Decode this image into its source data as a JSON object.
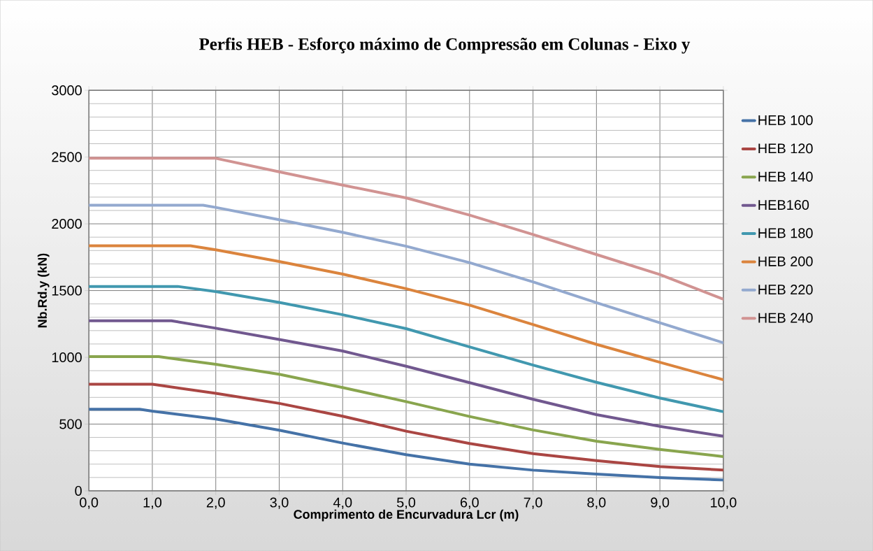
{
  "chart_data": {
    "type": "line",
    "title": "Perfis HEB - Esforço máximo de Compressão em Colunas - Eixo y",
    "xlabel": "Comprimento de Encurvadura Lcr (m)",
    "ylabel": "Nb.Rd.y (kN)",
    "xlim": [
      0,
      10
    ],
    "ylim": [
      0,
      3000
    ],
    "xticks": [
      {
        "value": 0,
        "label": "0,0"
      },
      {
        "value": 1,
        "label": "1,0"
      },
      {
        "value": 2,
        "label": "2,0"
      },
      {
        "value": 3,
        "label": "3,0"
      },
      {
        "value": 4,
        "label": "4,0"
      },
      {
        "value": 5,
        "label": "5,0"
      },
      {
        "value": 6,
        "label": "6,0"
      },
      {
        "value": 7,
        "label": "7,0"
      },
      {
        "value": 8,
        "label": "8,0"
      },
      {
        "value": 9,
        "label": "9,0"
      },
      {
        "value": 10,
        "label": "10,0"
      }
    ],
    "yticks": [
      0,
      500,
      1000,
      1500,
      2000,
      2500,
      3000
    ],
    "grid": true,
    "legend": "right",
    "series": [
      {
        "name": "HEB 100",
        "color": "#4572a7",
        "x": [
          0,
          0.8,
          1,
          2,
          3,
          4,
          5,
          6,
          7,
          8,
          9,
          10
        ],
        "values": [
          611,
          611,
          597,
          538,
          454,
          358,
          271,
          200,
          155,
          125,
          99,
          81
        ]
      },
      {
        "name": "HEB 120",
        "color": "#aa4643",
        "x": [
          0,
          1,
          2,
          3,
          4,
          5,
          6,
          7,
          8,
          9,
          10
        ],
        "values": [
          798,
          798,
          730,
          655,
          559,
          447,
          355,
          279,
          226,
          182,
          156
        ]
      },
      {
        "name": "HEB 140",
        "color": "#89a54e",
        "x": [
          0,
          1.1,
          2,
          3,
          4,
          5,
          6,
          7,
          8,
          9,
          10
        ],
        "values": [
          1005,
          1005,
          948,
          873,
          774,
          668,
          557,
          456,
          372,
          310,
          257
        ]
      },
      {
        "name": "HEB160",
        "color": "#71588f",
        "x": [
          0,
          1,
          1.3,
          2,
          3,
          4,
          5,
          6,
          7,
          8,
          9,
          10
        ],
        "values": [
          1274,
          1274,
          1274,
          1218,
          1134,
          1047,
          933,
          810,
          686,
          571,
          483,
          409
        ]
      },
      {
        "name": "HEB 180",
        "color": "#4198af",
        "x": [
          0,
          1,
          1.4,
          2,
          3,
          4,
          5,
          6,
          7,
          8,
          9,
          10
        ],
        "values": [
          1531,
          1531,
          1531,
          1492,
          1411,
          1319,
          1215,
          1078,
          942,
          813,
          695,
          593
        ]
      },
      {
        "name": "HEB 200",
        "color": "#db843d",
        "x": [
          0,
          1,
          1.6,
          2,
          3,
          4,
          5,
          6,
          7,
          8,
          9,
          10
        ],
        "values": [
          1835,
          1835,
          1835,
          1805,
          1718,
          1623,
          1514,
          1391,
          1246,
          1097,
          963,
          832
        ]
      },
      {
        "name": "HEB 220",
        "color": "#93a9cf",
        "x": [
          0,
          1,
          1.8,
          2,
          3,
          4,
          5,
          6,
          7,
          8,
          9,
          10
        ],
        "values": [
          2139,
          2139,
          2139,
          2123,
          2031,
          1936,
          1832,
          1709,
          1565,
          1409,
          1259,
          1109
        ]
      },
      {
        "name": "HEB 240",
        "color": "#d19392",
        "x": [
          0,
          1,
          2,
          3,
          4,
          5,
          6,
          7,
          8,
          9,
          10
        ],
        "values": [
          2491,
          2491,
          2491,
          2389,
          2290,
          2194,
          2065,
          1920,
          1770,
          1620,
          1435
        ]
      }
    ]
  }
}
